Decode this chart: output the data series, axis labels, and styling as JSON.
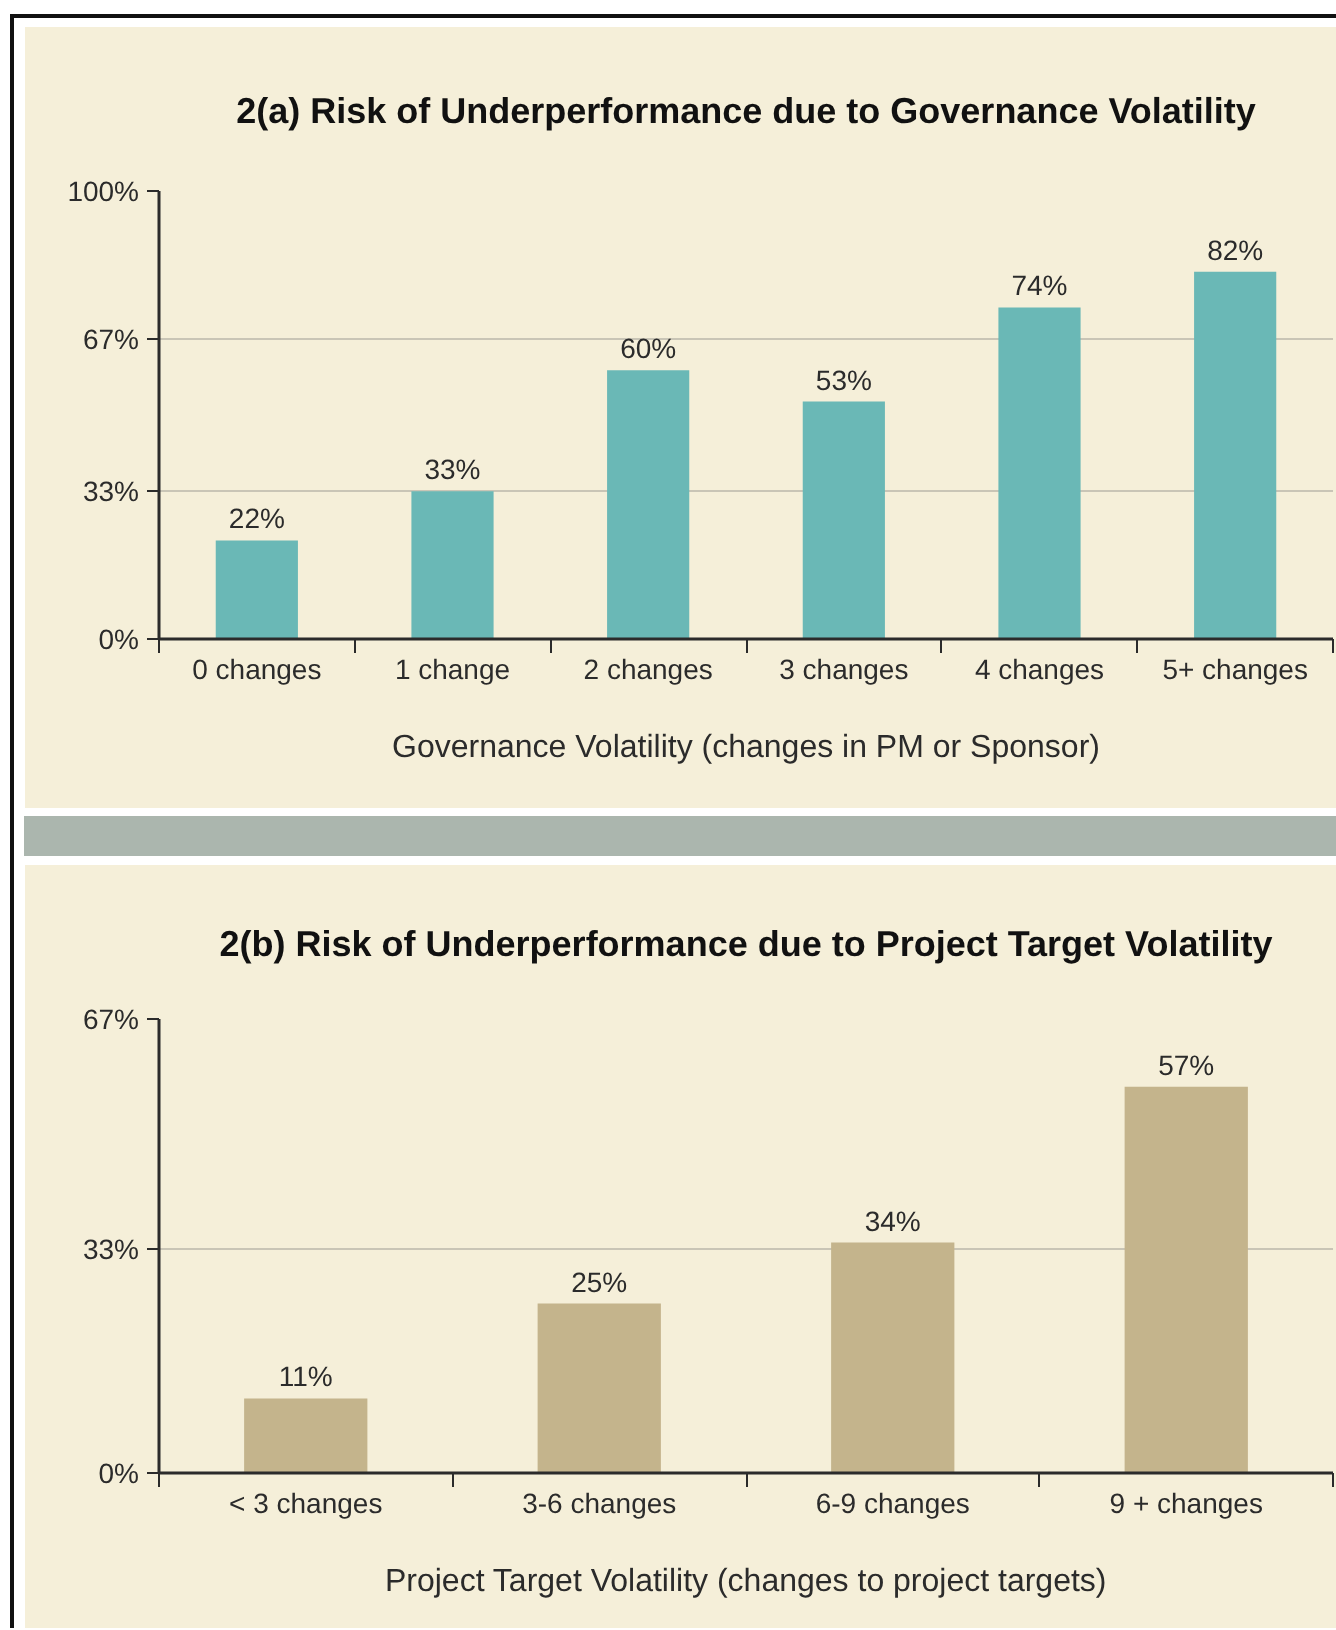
{
  "chart_data": [
    {
      "type": "bar",
      "title": "2(a) Risk of Underperformance due to Governance Volatility",
      "xlabel": "Governance Volatility (changes in PM or Sponsor)",
      "categories": [
        "0 changes",
        "1 change",
        "2 changes",
        "3 changes",
        "4 changes",
        "5+ changes"
      ],
      "values": [
        22,
        33,
        60,
        53,
        74,
        82
      ],
      "value_labels": [
        "22%",
        "33%",
        "60%",
        "53%",
        "74%",
        "82%"
      ],
      "color": "#6ab8b6",
      "ylim": [
        0,
        100
      ],
      "yticks": [
        {
          "value": 0,
          "label": "0%"
        },
        {
          "value": 33,
          "label": "33%"
        },
        {
          "value": 67,
          "label": "67%"
        },
        {
          "value": 100,
          "label": "100%"
        }
      ],
      "grid": "y"
    },
    {
      "type": "bar",
      "title": "2(b) Risk of Underperformance due to Project Target Volatility",
      "xlabel": "Project Target Volatility (changes to project targets)",
      "categories": [
        "< 3 changes",
        "3-6 changes",
        "6-9 changes",
        "9 + changes"
      ],
      "values": [
        11,
        25,
        34,
        57
      ],
      "value_labels": [
        "11%",
        "25%",
        "34%",
        "57%"
      ],
      "color": "#c4b48c",
      "ylim": [
        0,
        67
      ],
      "yticks": [
        {
          "value": 0,
          "label": "0%"
        },
        {
          "value": 33,
          "label": "33%"
        },
        {
          "value": 67,
          "label": "67%"
        }
      ],
      "grid": "y"
    }
  ]
}
